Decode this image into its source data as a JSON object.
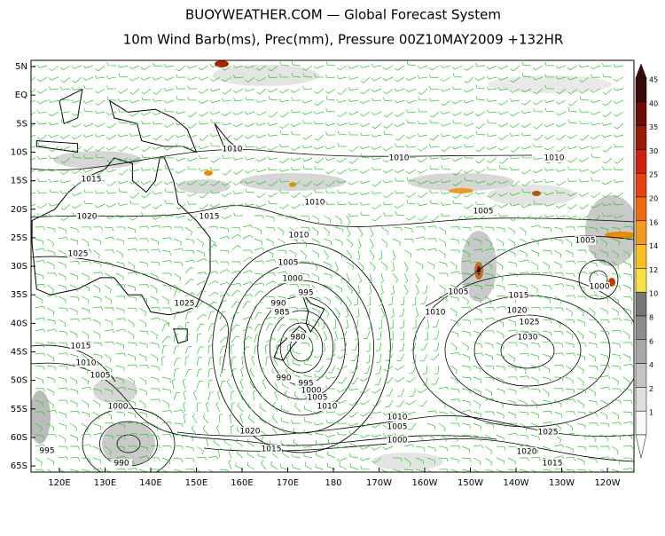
{
  "header": {
    "title": "BUOYWEATHER.COM — Global Forecast System",
    "subtitle": "10m Wind Barb(ms), Prec(mm), Pressure 00Z10MAY2009 +132HR"
  },
  "axes": {
    "lat_labels": [
      "5N",
      "EQ",
      "5S",
      "10S",
      "15S",
      "20S",
      "25S",
      "30S",
      "35S",
      "40S",
      "45S",
      "50S",
      "55S",
      "60S",
      "65S"
    ],
    "lon_labels": [
      "120E",
      "130E",
      "140E",
      "150E",
      "160E",
      "170E",
      "180",
      "170W",
      "160W",
      "150W",
      "140W",
      "130W",
      "120W"
    ]
  },
  "colorbar": {
    "labels": [
      "45",
      "40",
      "35",
      "30",
      "25",
      "20",
      "16",
      "14",
      "12",
      "10",
      "8",
      "6",
      "4",
      "2",
      "1"
    ]
  },
  "isobar_labels": [
    "1010",
    "1010",
    "1010",
    "1015",
    "1010",
    "1005",
    "1020",
    "1015",
    "1010",
    "1005",
    "1025",
    "1005",
    "1000",
    "995",
    "1005",
    "1015",
    "1000",
    "1025",
    "990",
    "985",
    "1010",
    "1020",
    "1025",
    "980",
    "1030",
    "1015",
    "1010",
    "1005",
    "990",
    "995",
    "1000",
    "1005",
    "1010",
    "1000",
    "1020",
    "1010",
    "1005",
    "1000",
    "1015",
    "1025",
    "1020",
    "1015",
    "995",
    "990"
  ]
}
